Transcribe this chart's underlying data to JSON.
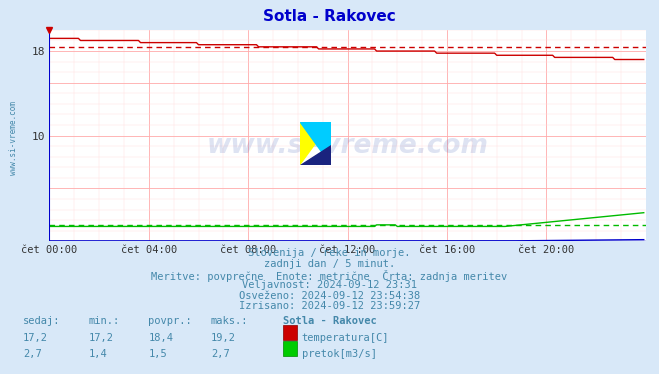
{
  "title": "Sotla - Rakovec",
  "title_color": "#0000cc",
  "bg_color": "#d8e8f8",
  "plot_bg_color": "#ffffff",
  "x_min": 0,
  "x_max": 288,
  "y_min": 0,
  "y_max": 20,
  "y_ticks": [
    10,
    18
  ],
  "x_tick_labels": [
    "čet 00:00",
    "čet 04:00",
    "čet 08:00",
    "čet 12:00",
    "čet 16:00",
    "čet 20:00"
  ],
  "x_tick_positions": [
    0,
    48,
    96,
    144,
    192,
    240
  ],
  "temp_color": "#cc0000",
  "pretok_color": "#00bb00",
  "visina_color": "#0000cc",
  "temp_avg": 18.4,
  "temp_start": 19.2,
  "temp_end": 17.2,
  "pretok_avg": 1.5,
  "pretok_min": 1.4,
  "pretok_max": 2.7,
  "watermark": "www.si-vreme.com",
  "subtitle1": "Slovenija / reke in morje.",
  "subtitle2": "zadnji dan / 5 minut.",
  "subtitle3": "Meritve: povprečne  Enote: metrične  Črta: zadnja meritev",
  "subtitle4": "Veljavnost: 2024-09-12 23:31",
  "subtitle5": "Osveženo: 2024-09-12 23:54:38",
  "subtitle6": "Izrisano: 2024-09-12 23:59:27",
  "table_header": [
    "sedaj:",
    "min.:",
    "povpr.:",
    "maks.:",
    "Sotla - Rakovec"
  ],
  "table_temp": [
    "17,2",
    "17,2",
    "18,4",
    "19,2"
  ],
  "table_pretok": [
    "2,7",
    "1,4",
    "1,5",
    "2,7"
  ],
  "label_temp": "temperatura[C]",
  "label_pretok": "pretok[m3/s]",
  "grid_color_major": "#ffaaaa",
  "grid_color_minor": "#ffdddd",
  "text_color": "#4488aa",
  "border_color": "#0000cc"
}
